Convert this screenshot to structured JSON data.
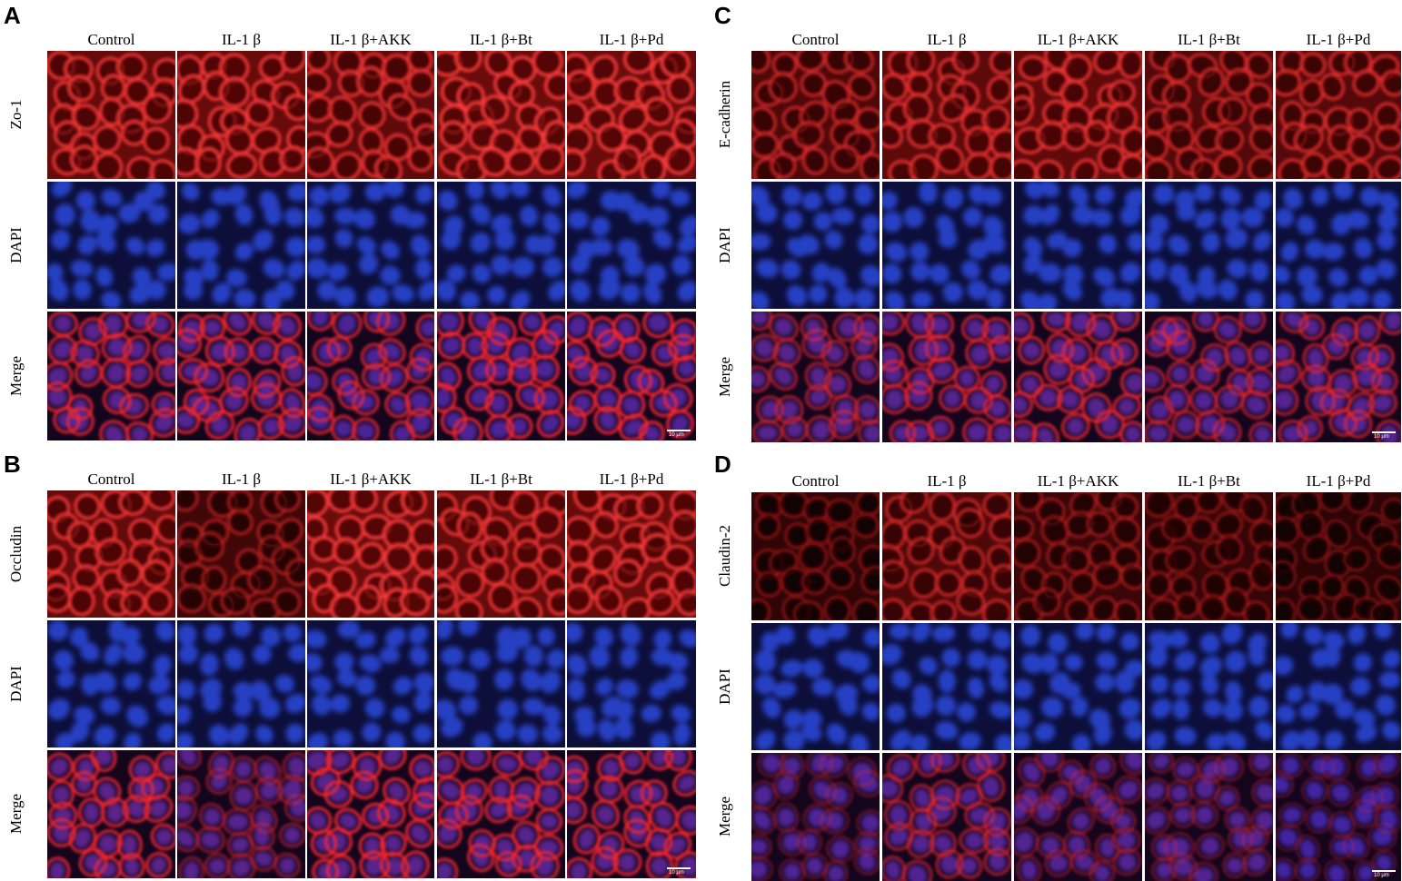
{
  "panels": [
    {
      "letter": "A",
      "columns": [
        "Control",
        "IL-1 β",
        "IL-1 β+AKK",
        "IL-1 β+Bt",
        "IL-1 β+Pd"
      ],
      "rows": [
        "Zo-1",
        "DAPI",
        "Merge"
      ],
      "scale_bar": "10 μm"
    },
    {
      "letter": "B",
      "columns": [
        "Control",
        "IL-1 β",
        "IL-1 β+AKK",
        "IL-1 β+Bt",
        "IL-1 β+Pd"
      ],
      "rows": [
        "Occludin",
        "DAPI",
        "Merge"
      ],
      "scale_bar": "10 μm"
    },
    {
      "letter": "C",
      "columns": [
        "Control",
        "IL-1 β",
        "IL-1 β+AKK",
        "IL-1 β+Bt",
        "IL-1 β+Pd"
      ],
      "rows": [
        "E-cadherin",
        "DAPI",
        "Merge"
      ],
      "scale_bar": "10 μm"
    },
    {
      "letter": "D",
      "columns": [
        "Control",
        "IL-1 β",
        "IL-1 β+AKK",
        "IL-1 β+Bt",
        "IL-1 β+Pd"
      ],
      "rows": [
        "Claudin-2",
        "DAPI",
        "Merge"
      ],
      "scale_bar": "10 μm"
    }
  ],
  "colors": {
    "membrane_stain": "#e0201c",
    "dapi_stain": "#2a4cd8",
    "background_dark": "#0b0210",
    "figure_background": "#ffffff"
  }
}
